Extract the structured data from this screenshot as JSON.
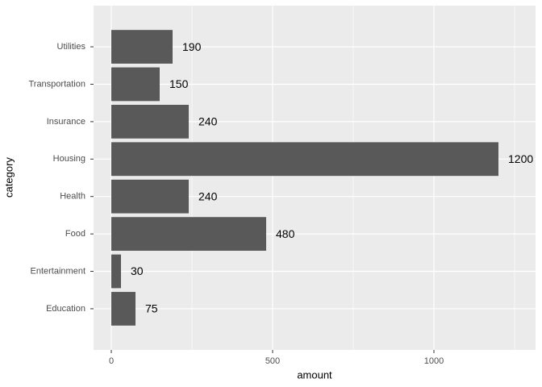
{
  "chart_data": {
    "type": "bar",
    "orientation": "horizontal",
    "x_label": "amount",
    "y_label": "category",
    "categories": [
      "Education",
      "Entertainment",
      "Food",
      "Health",
      "Housing",
      "Insurance",
      "Transportation",
      "Utilities"
    ],
    "values": [
      75,
      30,
      480,
      240,
      1200,
      240,
      150,
      190
    ],
    "color": "#595959",
    "xlim": [
      -55,
      1315
    ],
    "xticks": [
      0,
      500,
      1000
    ],
    "xminorticks": [
      250,
      750,
      1250
    ],
    "grid": true,
    "data_labels": true
  }
}
